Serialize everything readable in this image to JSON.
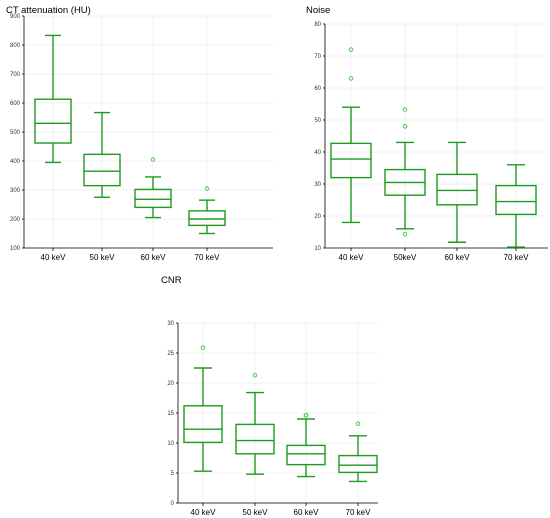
{
  "chart_data": [
    {
      "type": "box",
      "title": "CT attenuation (HU)",
      "categories": [
        "40 keV",
        "50 keV",
        "60 keV",
        "70 keV"
      ],
      "ylim": [
        100,
        900
      ],
      "yticks": [
        100,
        200,
        300,
        400,
        500,
        600,
        700,
        800,
        900
      ],
      "grid": true,
      "boxes": [
        {
          "category": "40 keV",
          "whisker_low": 395,
          "q1": 462,
          "median": 530,
          "q3": 613,
          "whisker_high": 833,
          "outliers": []
        },
        {
          "category": "50 keV",
          "whisker_low": 275,
          "q1": 315,
          "median": 365,
          "q3": 423,
          "whisker_high": 567,
          "outliers": []
        },
        {
          "category": "60 keV",
          "whisker_low": 205,
          "q1": 240,
          "median": 268,
          "q3": 302,
          "whisker_high": 345,
          "outliers": [
            405
          ]
        },
        {
          "category": "70 keV",
          "whisker_low": 150,
          "q1": 178,
          "median": 200,
          "q3": 228,
          "whisker_high": 265,
          "outliers": [
            305
          ]
        }
      ]
    },
    {
      "type": "box",
      "title": "Noise",
      "categories": [
        "40 keV",
        "50keV",
        "60 keV",
        "70 keV"
      ],
      "ylim": [
        10,
        80
      ],
      "yticks": [
        10,
        20,
        30,
        40,
        50,
        60,
        70,
        80
      ],
      "grid": true,
      "boxes": [
        {
          "category": "40 keV",
          "whisker_low": 18,
          "q1": 32,
          "median": 37.8,
          "q3": 42.7,
          "whisker_high": 54,
          "outliers": [
            63,
            72
          ]
        },
        {
          "category": "50keV",
          "whisker_low": 16,
          "q1": 26.5,
          "median": 30.5,
          "q3": 34.5,
          "whisker_high": 43,
          "outliers": [
            14.3,
            48,
            53.3
          ]
        },
        {
          "category": "60 keV",
          "whisker_low": 11.8,
          "q1": 23.5,
          "median": 28,
          "q3": 33,
          "whisker_high": 43,
          "outliers": []
        },
        {
          "category": "70 keV",
          "whisker_low": 10.3,
          "q1": 20.5,
          "median": 24.5,
          "q3": 29.5,
          "whisker_high": 36,
          "outliers": []
        }
      ]
    },
    {
      "type": "box",
      "title": "CNR",
      "categories": [
        "40 keV",
        "50 keV",
        "60 keV",
        "70 keV"
      ],
      "ylim": [
        0,
        30
      ],
      "yticks": [
        0,
        5,
        10,
        15,
        20,
        25,
        30
      ],
      "grid": true,
      "boxes": [
        {
          "category": "40 keV",
          "whisker_low": 5.3,
          "q1": 10.1,
          "median": 12.3,
          "q3": 16.2,
          "whisker_high": 22.5,
          "outliers": [
            25.9
          ]
        },
        {
          "category": "50 keV",
          "whisker_low": 4.8,
          "q1": 8.2,
          "median": 10.4,
          "q3": 13.1,
          "whisker_high": 18.4,
          "outliers": [
            21.3
          ]
        },
        {
          "category": "60 keV",
          "whisker_low": 4.4,
          "q1": 6.4,
          "median": 8.2,
          "q3": 9.6,
          "whisker_high": 14,
          "outliers": [
            14.6,
            14.6
          ]
        },
        {
          "category": "70 keV",
          "whisker_low": 3.6,
          "q1": 5.1,
          "median": 6.3,
          "q3": 7.9,
          "whisker_high": 11.2,
          "outliers": [
            13.2
          ]
        }
      ]
    }
  ],
  "colors": {
    "box": "#1e9a1e",
    "outlier": "#3ec63e",
    "axis": "#000000",
    "grid": "#e6e6e6"
  }
}
